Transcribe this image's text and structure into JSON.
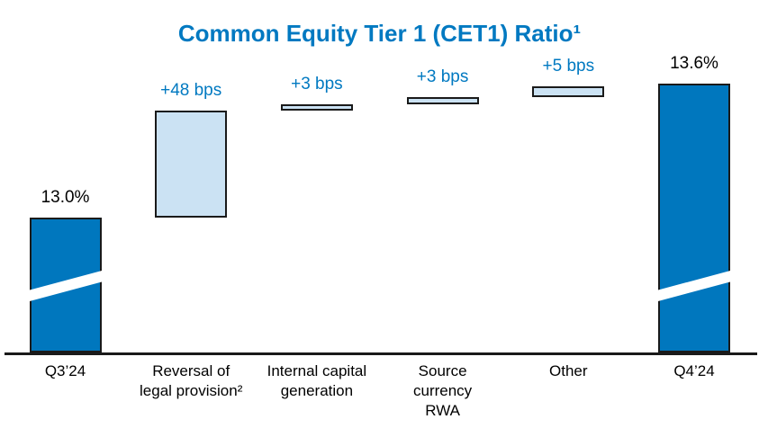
{
  "title": {
    "text": "Common Equity Tier 1 (CET1) Ratio¹"
  },
  "colors": {
    "accent_blue": "#0079C1",
    "bar_dark_blue": "#0077BE",
    "bar_light_blue": "#CBE2F3",
    "bar_border": "#1A1A1A",
    "axis_line": "#1A1A1A",
    "value_text_black": "#000000"
  },
  "chart_data": {
    "type": "bar",
    "subtype": "waterfall",
    "title": "Common Equity Tier 1 (CET1) Ratio¹",
    "orientation": "vertical",
    "grid": false,
    "legend": false,
    "axis_break_marker": "white diagonal slash on total bars",
    "start_ratio_pct": 13.0,
    "end_ratio_pct": 13.6,
    "bars": [
      {
        "category": "Q3’24",
        "label_lines": [
          "Q3’24"
        ],
        "kind": "total",
        "value_pct": 13.0,
        "value_label": "13.0%"
      },
      {
        "category": "Reversal of legal provision²",
        "label_lines": [
          "Reversal of",
          "legal provision²"
        ],
        "kind": "increase",
        "delta_bps": 48,
        "value_label": "+48 bps"
      },
      {
        "category": "Internal capital generation",
        "label_lines": [
          "Internal capital",
          "generation"
        ],
        "kind": "increase",
        "delta_bps": 3,
        "value_label": "+3 bps"
      },
      {
        "category": "Source currency RWA",
        "label_lines": [
          "Source",
          "currency",
          "RWA"
        ],
        "kind": "increase",
        "delta_bps": 3,
        "value_label": "+3 bps"
      },
      {
        "category": "Other",
        "label_lines": [
          "Other"
        ],
        "kind": "increase",
        "delta_bps": 5,
        "value_label": "+5 bps"
      },
      {
        "category": "Q4’24",
        "label_lines": [
          "Q4’24"
        ],
        "kind": "total",
        "value_pct": 13.6,
        "value_label": "13.6%"
      }
    ]
  }
}
